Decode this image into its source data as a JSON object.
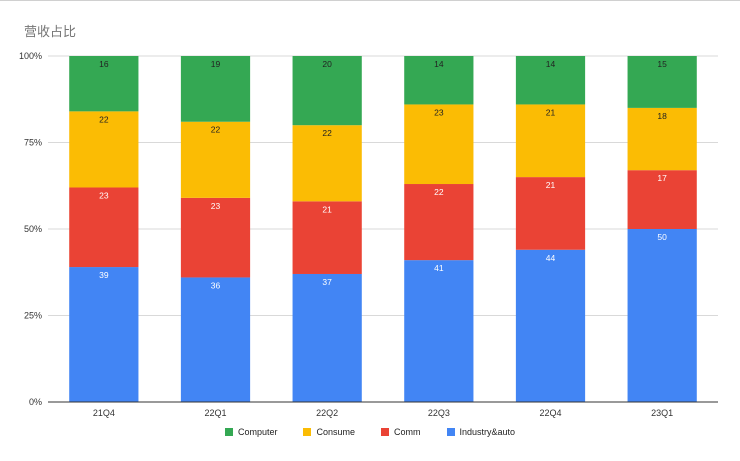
{
  "title": "营收占比",
  "colors": {
    "Computer": "#34a853",
    "Consume": "#fbbc04",
    "Comm": "#ea4335",
    "Industry&auto": "#4285f4",
    "grid": "#d9d9d9",
    "axis": "#333333",
    "label_text": "#222222"
  },
  "chart_data": {
    "type": "bar",
    "stacked": true,
    "percent_stacked": true,
    "title": "营收占比",
    "xlabel": "",
    "ylabel": "",
    "ylim": [
      0,
      100
    ],
    "yticks": [
      "0%",
      "25%",
      "50%",
      "75%",
      "100%"
    ],
    "categories": [
      "21Q4",
      "22Q1",
      "22Q2",
      "22Q3",
      "22Q4",
      "23Q1"
    ],
    "series": [
      {
        "name": "Industry&auto",
        "values": [
          39,
          36,
          37,
          41,
          44,
          50
        ],
        "label_color": "#ffffff"
      },
      {
        "name": "Comm",
        "values": [
          23,
          23,
          21,
          22,
          21,
          17
        ],
        "label_color": "#ffffff"
      },
      {
        "name": "Consume",
        "values": [
          22,
          22,
          22,
          23,
          21,
          18
        ],
        "label_color": "#222222"
      },
      {
        "name": "Computer",
        "values": [
          16,
          19,
          20,
          14,
          14,
          15
        ],
        "label_color": "#222222"
      }
    ],
    "legend": [
      "Computer",
      "Consume",
      "Comm",
      "Industry&auto"
    ],
    "legend_position": "bottom"
  }
}
